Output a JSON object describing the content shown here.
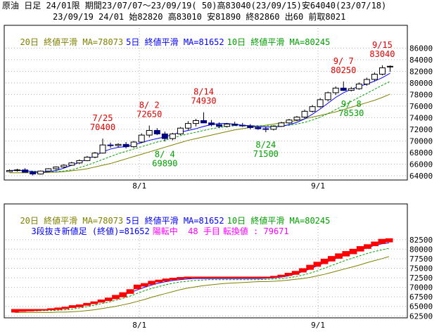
{
  "header": {
    "line1": "原油 日足 24/01限 期間23/07/07～23/09/19( 50)高83040(23/09/15)安64040(23/07/18)",
    "line2": "23/09/19 24/01 始82820 高83010 安81890 終82860 出60 前取8021"
  },
  "legend": {
    "ma20": "20日 終値平滑 MA=78073",
    "ma5": "5日 終値平滑 MA=81652",
    "ma10": "10日 終値平滑 MA=80245"
  },
  "lower": {
    "line2_a": "3段抜き新値足 (終値)=81652",
    "line2_b": "陽転中  48 手目",
    "line2_c": "転換値 : 79671"
  },
  "x_ticks": [
    "8/1",
    "9/1"
  ],
  "colors": {
    "ma20": "#808000",
    "ma5": "#0000ff",
    "ma10": "#00a000",
    "peak": "#e00000",
    "trough": "#00a000",
    "kagi_up": "#ff0000",
    "lower_info": "#ff00ff"
  },
  "chart_data": [
    {
      "type": "candlestick",
      "title": "原油 日足 24/01限",
      "ylim": [
        63500,
        87500
      ],
      "y_ticks": [
        64000,
        66000,
        68000,
        70000,
        72000,
        74000,
        76000,
        78000,
        80000,
        82000,
        84000,
        86000
      ],
      "y_tick_labels": [
        "64000",
        "66000",
        "68000",
        "70000",
        "72000",
        "74000",
        "76000",
        "78000",
        "80000",
        "82000",
        "84000",
        "86000"
      ],
      "annotations": [
        {
          "date": "7/25",
          "value": "70400",
          "kind": "peak",
          "idx": 12
        },
        {
          "date": "8/ 2",
          "value": "72650",
          "kind": "peak",
          "idx": 18
        },
        {
          "date": "8/14",
          "value": "74930",
          "kind": "peak",
          "idx": 25
        },
        {
          "date": "9/ 7",
          "value": "80250",
          "kind": "peak",
          "idx": 43
        },
        {
          "date": "9/15",
          "value": "83040",
          "kind": "peak",
          "idx": 48
        },
        {
          "date": "8/ 4",
          "value": "69890",
          "kind": "trough",
          "idx": 20
        },
        {
          "date": "8/24",
          "value": "71500",
          "kind": "trough",
          "idx": 33
        },
        {
          "date": "9/ 8",
          "value": "78530",
          "kind": "trough",
          "idx": 44
        }
      ],
      "ohlc": [
        [
          64700,
          65100,
          64600,
          64900
        ],
        [
          64900,
          65200,
          64700,
          65000
        ],
        [
          65000,
          65300,
          64800,
          64600
        ],
        [
          64600,
          64800,
          64040,
          64300
        ],
        [
          64300,
          64900,
          64200,
          64800
        ],
        [
          64800,
          65300,
          64700,
          65200
        ],
        [
          65200,
          65600,
          65000,
          65500
        ],
        [
          65500,
          66000,
          65300,
          65800
        ],
        [
          65800,
          66400,
          65700,
          66200
        ],
        [
          66200,
          66800,
          66000,
          66600
        ],
        [
          66600,
          67400,
          66500,
          67200
        ],
        [
          67200,
          68100,
          67000,
          67900
        ],
        [
          67900,
          70400,
          67800,
          69300
        ],
        [
          69300,
          69700,
          68800,
          69200
        ],
        [
          69200,
          69600,
          68900,
          69400
        ],
        [
          69400,
          69800,
          68700,
          69000
        ],
        [
          69000,
          70000,
          68800,
          69800
        ],
        [
          69800,
          71300,
          69600,
          71000
        ],
        [
          71000,
          72650,
          70600,
          71800
        ],
        [
          71800,
          72200,
          71000,
          71200
        ],
        [
          71200,
          71600,
          69890,
          70400
        ],
        [
          70400,
          71400,
          70100,
          71200
        ],
        [
          71200,
          72400,
          71000,
          72200
        ],
        [
          72200,
          73400,
          71900,
          73000
        ],
        [
          73000,
          73800,
          72500,
          73500
        ],
        [
          73500,
          74930,
          73200,
          73100
        ],
        [
          73100,
          73600,
          72500,
          72800
        ],
        [
          72800,
          73200,
          72200,
          72500
        ],
        [
          72500,
          73100,
          72300,
          72900
        ],
        [
          72900,
          73300,
          72600,
          72700
        ],
        [
          72700,
          73100,
          72400,
          72600
        ],
        [
          72600,
          72900,
          72000,
          72300
        ],
        [
          72300,
          72600,
          71900,
          72100
        ],
        [
          72100,
          72500,
          71500,
          72000
        ],
        [
          72000,
          72700,
          71800,
          72500
        ],
        [
          72500,
          73300,
          72400,
          73100
        ],
        [
          73100,
          73800,
          72900,
          73600
        ],
        [
          73600,
          74300,
          73400,
          74100
        ],
        [
          74100,
          75400,
          73900,
          75100
        ],
        [
          75100,
          76200,
          74900,
          75900
        ],
        [
          75900,
          77400,
          75700,
          77100
        ],
        [
          77100,
          78500,
          76800,
          78300
        ],
        [
          78300,
          79400,
          77900,
          79100
        ],
        [
          79100,
          80250,
          78600,
          78700
        ],
        [
          78700,
          79300,
          78530,
          79000
        ],
        [
          79000,
          80100,
          78800,
          79800
        ],
        [
          79800,
          80900,
          79500,
          80600
        ],
        [
          80600,
          81800,
          80300,
          81500
        ],
        [
          81500,
          83040,
          81300,
          82600
        ],
        [
          82820,
          83010,
          81890,
          82860
        ]
      ],
      "ma5": [
        64900,
        64950,
        64850,
        64700,
        64600,
        64700,
        64900,
        65300,
        65800,
        66300,
        66900,
        67400,
        68100,
        68600,
        68900,
        69000,
        69300,
        69700,
        70100,
        70400,
        70700,
        71100,
        71500,
        71800,
        72100,
        72500,
        72800,
        73000,
        73000,
        72900,
        72700,
        72600,
        72500,
        72400,
        72400,
        72500,
        72800,
        73200,
        73800,
        74600,
        75500,
        76500,
        77500,
        78300,
        78900,
        79400,
        79800,
        80300,
        80900,
        81652
      ],
      "ma10": [
        64900,
        64900,
        64850,
        64800,
        64750,
        64700,
        64700,
        64800,
        65000,
        65400,
        65800,
        66300,
        66800,
        67300,
        67800,
        68200,
        68600,
        69000,
        69400,
        69800,
        70100,
        70500,
        70900,
        71200,
        71500,
        71800,
        72100,
        72300,
        72500,
        72600,
        72600,
        72600,
        72600,
        72600,
        72600,
        72600,
        72700,
        72900,
        73200,
        73600,
        74100,
        74700,
        75400,
        76100,
        76800,
        77500,
        78200,
        78900,
        79600,
        80245
      ],
      "ma20": [
        64500,
        64500,
        64500,
        64500,
        64500,
        64550,
        64600,
        64700,
        64850,
        65000,
        65200,
        65500,
        65800,
        66100,
        66500,
        66900,
        67300,
        67700,
        68100,
        68500,
        68900,
        69300,
        69700,
        70100,
        70400,
        70700,
        71000,
        71300,
        71600,
        71900,
        72100,
        72300,
        72500,
        72700,
        72900,
        73100,
        73300,
        73500,
        73800,
        74100,
        74400,
        74700,
        75000,
        75400,
        75800,
        76200,
        76600,
        77000,
        77500,
        78073
      ]
    },
    {
      "type": "step",
      "title": "3段抜き新値足",
      "ylim": [
        62000,
        84500
      ],
      "y_ticks": [
        62500,
        65000,
        67500,
        70000,
        72500,
        75000,
        77500,
        80000,
        82500
      ],
      "y_tick_labels": [
        "62500",
        "65000",
        "67500",
        "70000",
        "72500",
        "75000",
        "77500",
        "80000",
        "82500"
      ],
      "blocks": [
        [
          63400,
          64300
        ],
        [
          63600,
          64300
        ],
        [
          63700,
          64300
        ],
        [
          63800,
          64300
        ],
        [
          63900,
          64300
        ],
        [
          64000,
          64500
        ],
        [
          64100,
          64700
        ],
        [
          64300,
          64900
        ],
        [
          64600,
          65300
        ],
        [
          64800,
          65500
        ],
        [
          65200,
          65900
        ],
        [
          65600,
          66300
        ],
        [
          66000,
          66800
        ],
        [
          66400,
          67300
        ],
        [
          66900,
          68000
        ],
        [
          67400,
          68700
        ],
        [
          68300,
          69500
        ],
        [
          69500,
          70700
        ],
        [
          70200,
          71100
        ],
        [
          70700,
          71700
        ],
        [
          71300,
          72000
        ],
        [
          71600,
          72300
        ],
        [
          71900,
          72500
        ],
        [
          72100,
          72700
        ],
        [
          72300,
          72800
        ],
        [
          72400,
          72800
        ],
        [
          72400,
          72800
        ],
        [
          72400,
          72800
        ],
        [
          72400,
          72800
        ],
        [
          72400,
          72800
        ],
        [
          72400,
          72800
        ],
        [
          72400,
          72800
        ],
        [
          72400,
          72800
        ],
        [
          72400,
          72800
        ],
        [
          72400,
          72800
        ],
        [
          72400,
          72800
        ],
        [
          72500,
          73000
        ],
        [
          72700,
          73300
        ],
        [
          73000,
          73800
        ],
        [
          73300,
          74300
        ],
        [
          73900,
          75000
        ],
        [
          74600,
          75900
        ],
        [
          75400,
          76700
        ],
        [
          76100,
          77500
        ],
        [
          76800,
          78200
        ],
        [
          77500,
          78900
        ],
        [
          78100,
          79500
        ],
        [
          78700,
          80100
        ],
        [
          79400,
          80800
        ],
        [
          80100,
          81300
        ],
        [
          80800,
          82000
        ],
        [
          81400,
          82700
        ],
        [
          81800,
          82860
        ]
      ],
      "ma5": [
        64000,
        64000,
        64000,
        64000,
        64100,
        64200,
        64300,
        64500,
        64800,
        65100,
        65500,
        65900,
        66300,
        66800,
        67300,
        67900,
        68600,
        69300,
        70000,
        70600,
        71100,
        71500,
        71800,
        72000,
        72200,
        72300,
        72300,
        72300,
        72300,
        72300,
        72300,
        72300,
        72300,
        72300,
        72300,
        72400,
        72500,
        72700,
        73000,
        73500,
        74100,
        74800,
        75600,
        76400,
        77100,
        77800,
        78500,
        79100,
        79800,
        80400,
        81000,
        81400,
        81652
      ],
      "ma10": [
        63800,
        63800,
        63800,
        63800,
        63900,
        63900,
        64000,
        64100,
        64300,
        64600,
        64900,
        65300,
        65700,
        66100,
        66600,
        67100,
        67700,
        68400,
        69100,
        69700,
        70200,
        70700,
        71100,
        71400,
        71600,
        71800,
        71900,
        72000,
        72000,
        72000,
        72000,
        72000,
        72000,
        72000,
        72000,
        72100,
        72200,
        72300,
        72500,
        72800,
        73200,
        73700,
        74300,
        75000,
        75700,
        76400,
        77100,
        77700,
        78300,
        78900,
        79400,
        79800,
        80245
      ],
      "ma20": [
        63400,
        63400,
        63400,
        63400,
        63400,
        63400,
        63500,
        63500,
        63600,
        63700,
        63900,
        64100,
        64400,
        64700,
        65000,
        65400,
        65800,
        66300,
        66800,
        67400,
        67900,
        68400,
        68900,
        69400,
        69800,
        70100,
        70400,
        70600,
        70800,
        71000,
        71100,
        71200,
        71300,
        71400,
        71500,
        71500,
        71600,
        71700,
        71900,
        72100,
        72300,
        72600,
        73000,
        73400,
        73900,
        74400,
        74900,
        75400,
        75900,
        76500,
        77000,
        77500,
        78073
      ]
    }
  ]
}
